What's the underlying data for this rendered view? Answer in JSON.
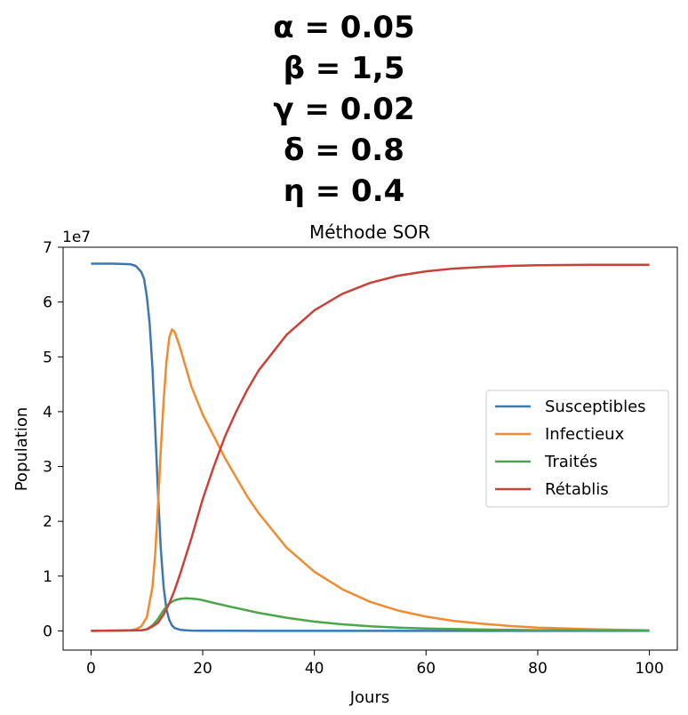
{
  "parameters": [
    "α = 0.05",
    "β = 1,5",
    "γ = 0.02",
    "δ = 0.8",
    "η = 0.4"
  ],
  "chart_data": {
    "type": "line",
    "title": "Méthode SOR",
    "xlabel": "Jours",
    "ylabel": "Population",
    "y_offset_label": "1e7",
    "xlim": [
      -5,
      105
    ],
    "ylim": [
      -0.35,
      7.0
    ],
    "xticks": [
      0,
      20,
      40,
      60,
      80,
      100
    ],
    "yticks": [
      0,
      1,
      2,
      3,
      4,
      5,
      6,
      7
    ],
    "grid": false,
    "legend": "center-right",
    "series": [
      {
        "name": "Susceptibles",
        "color": "#3b78b0",
        "x": [
          0,
          4,
          7,
          8,
          9,
          9.5,
          10,
          10.5,
          11,
          11.5,
          12,
          12.5,
          13,
          13.5,
          14,
          14.5,
          15,
          16,
          17,
          18,
          20,
          25,
          30,
          40,
          60,
          80,
          100
        ],
        "values": [
          6.7,
          6.7,
          6.69,
          6.66,
          6.55,
          6.42,
          6.1,
          5.6,
          4.8,
          3.7,
          2.5,
          1.5,
          0.8,
          0.4,
          0.2,
          0.1,
          0.05,
          0.02,
          0.01,
          0.005,
          0.003,
          0.002,
          0.001,
          0.001,
          0.001,
          0.001,
          0.001
        ]
      },
      {
        "name": "Infectieux",
        "color": "#f08b32",
        "x": [
          0,
          7,
          8,
          9,
          10,
          11,
          11.5,
          12,
          12.5,
          13,
          13.5,
          14,
          14.5,
          15,
          16,
          17,
          18,
          20,
          22,
          24,
          26,
          28,
          30,
          35,
          40,
          45,
          50,
          55,
          60,
          65,
          70,
          75,
          80,
          90,
          100
        ],
        "values": [
          0.0,
          0.01,
          0.03,
          0.08,
          0.25,
          0.8,
          1.4,
          2.3,
          3.3,
          4.2,
          4.9,
          5.35,
          5.5,
          5.45,
          5.15,
          4.8,
          4.45,
          3.95,
          3.55,
          3.15,
          2.8,
          2.45,
          2.15,
          1.52,
          1.08,
          0.76,
          0.53,
          0.37,
          0.26,
          0.18,
          0.13,
          0.09,
          0.06,
          0.03,
          0.01
        ]
      },
      {
        "name": "Traités",
        "color": "#4ba64b",
        "x": [
          0,
          9,
          10,
          11,
          12,
          13,
          14,
          15,
          16,
          17,
          18,
          19,
          20,
          22,
          25,
          30,
          35,
          40,
          45,
          50,
          55,
          60,
          70,
          80,
          90,
          100
        ],
        "values": [
          0.0,
          0.01,
          0.03,
          0.1,
          0.22,
          0.38,
          0.5,
          0.56,
          0.585,
          0.595,
          0.59,
          0.58,
          0.56,
          0.51,
          0.44,
          0.33,
          0.24,
          0.17,
          0.12,
          0.085,
          0.06,
          0.045,
          0.025,
          0.014,
          0.008,
          0.004
        ]
      },
      {
        "name": "Rétablis",
        "color": "#c8423a",
        "x": [
          0,
          9,
          10,
          11,
          12,
          13,
          14,
          15,
          16,
          18,
          20,
          22,
          24,
          26,
          28,
          30,
          35,
          40,
          45,
          50,
          55,
          60,
          65,
          70,
          75,
          80,
          90,
          100
        ],
        "values": [
          0.0,
          0.01,
          0.03,
          0.08,
          0.15,
          0.3,
          0.5,
          0.75,
          1.05,
          1.7,
          2.4,
          3.0,
          3.55,
          4.0,
          4.4,
          4.75,
          5.4,
          5.85,
          6.15,
          6.35,
          6.48,
          6.56,
          6.61,
          6.64,
          6.66,
          6.67,
          6.68,
          6.68
        ]
      }
    ]
  }
}
